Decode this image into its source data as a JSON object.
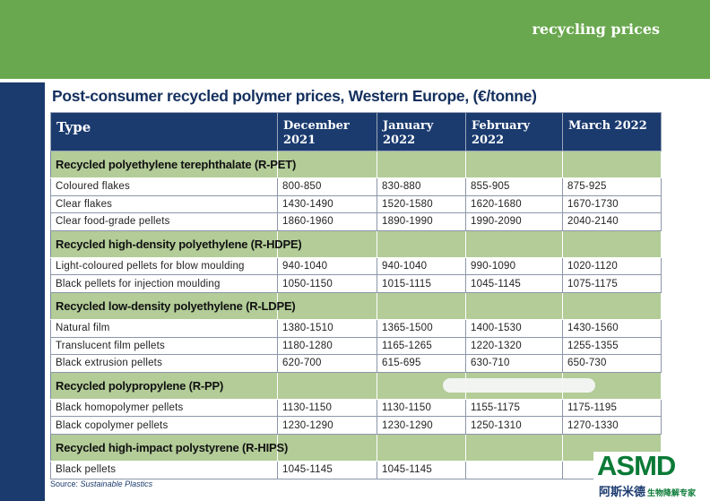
{
  "header": {
    "section_label": "recycling prices"
  },
  "table": {
    "title": "Post-consumer recycled polymer prices, Western Europe, (€/tonne)",
    "columns": [
      "Type",
      "December 2021",
      "January 2022",
      "February 2022",
      "March 2022"
    ],
    "sections": [
      {
        "name": "Recycled polyethylene terephthalate (R-PET)",
        "rows": [
          [
            "Coloured flakes",
            "800-850",
            "830-880",
            "855-905",
            "875-925"
          ],
          [
            "Clear flakes",
            "1430-1490",
            "1520-1580",
            "1620-1680",
            "1670-1730"
          ],
          [
            "Clear food-grade pellets",
            "1860-1960",
            "1890-1990",
            "1990-2090",
            "2040-2140"
          ]
        ]
      },
      {
        "name": "Recycled high-density polyethylene (R-HDPE)",
        "rows": [
          [
            "Light-coloured pellets for blow moulding",
            "940-1040",
            "940-1040",
            "990-1090",
            "1020-1120"
          ],
          [
            "Black pellets for injection moulding",
            "1050-1150",
            "1015-1115",
            "1045-1145",
            "1075-1175"
          ]
        ]
      },
      {
        "name": "Recycled low-density polyethylene (R-LDPE)",
        "rows": [
          [
            "Natural film",
            "1380-1510",
            "1365-1500",
            "1400-1530",
            "1430-1560"
          ],
          [
            "Translucent film pellets",
            "1180-1280",
            "1165-1265",
            "1220-1320",
            "1255-1355"
          ],
          [
            "Black extrusion pellets",
            "620-700",
            "615-695",
            "630-710",
            "650-730"
          ]
        ]
      },
      {
        "name": "Recycled polypropylene (R-PP)",
        "rows": [
          [
            "Black homopolymer pellets",
            "1130-1150",
            "1130-1150",
            "1155-1175",
            "1175-1195"
          ],
          [
            "Black copolymer pellets",
            "1230-1290",
            "1230-1290",
            "1250-1310",
            "1270-1330"
          ]
        ]
      },
      {
        "name": "Recycled high-impact polystyrene (R-HIPS)",
        "rows": [
          [
            "Black pellets",
            "1045-1145",
            "1045-1145",
            "",
            ""
          ]
        ]
      }
    ]
  },
  "source": {
    "label": "Source:",
    "name": "Sustainable Plastics"
  },
  "watermark": {
    "mark": "ASMD",
    "cn_name": "阿斯米德",
    "cn_tag": "生物降解专家"
  },
  "colors": {
    "green_band": "#6aa84f",
    "navy": "#1b3b6f",
    "section_fill": "#b3cc98"
  }
}
